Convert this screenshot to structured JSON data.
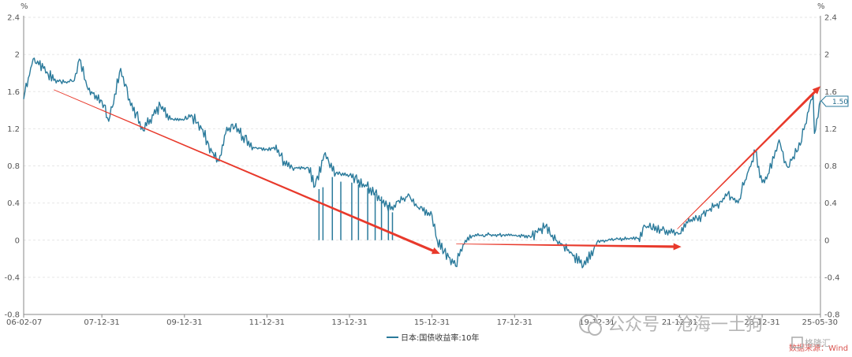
{
  "chart_data": {
    "type": "line",
    "unit_left": "%",
    "unit_right": "%",
    "y_ticks": [
      "2.4",
      "2",
      "1.6",
      "1.2",
      "0.8",
      "0.4",
      "0",
      "-0.4",
      "-0.8"
    ],
    "x_ticks": [
      "06-02-07",
      "07-12-31",
      "09-12-31",
      "11-12-31",
      "13-12-31",
      "15-12-31",
      "17-12-31",
      "19-12-31",
      "21-12-31",
      "23-12-31",
      "25-05-30"
    ],
    "ylim": [
      -0.8,
      2.4
    ],
    "xlim": [
      "2006-02-07",
      "2025-05-30"
    ],
    "grid": true,
    "legend_position": "bottom-center",
    "series": [
      {
        "name": "日本:国债收益率:10年",
        "color": "#2a7a9b",
        "last_value_label": "1.50",
        "points": [
          [
            "2006-02-07",
            1.52
          ],
          [
            "2006-05-01",
            1.95
          ],
          [
            "2006-08-01",
            1.85
          ],
          [
            "2006-11-01",
            1.72
          ],
          [
            "2007-02-01",
            1.7
          ],
          [
            "2007-05-01",
            1.72
          ],
          [
            "2007-06-15",
            1.95
          ],
          [
            "2007-09-01",
            1.62
          ],
          [
            "2007-12-31",
            1.5
          ],
          [
            "2008-03-01",
            1.28
          ],
          [
            "2008-06-15",
            1.85
          ],
          [
            "2008-09-01",
            1.52
          ],
          [
            "2008-12-31",
            1.18
          ],
          [
            "2009-03-01",
            1.3
          ],
          [
            "2009-06-01",
            1.45
          ],
          [
            "2009-09-01",
            1.3
          ],
          [
            "2009-12-31",
            1.3
          ],
          [
            "2010-03-01",
            1.35
          ],
          [
            "2010-06-01",
            1.2
          ],
          [
            "2010-09-01",
            0.95
          ],
          [
            "2010-11-01",
            0.85
          ],
          [
            "2010-12-31",
            1.15
          ],
          [
            "2011-03-01",
            1.25
          ],
          [
            "2011-06-01",
            1.12
          ],
          [
            "2011-09-01",
            1.0
          ],
          [
            "2011-12-31",
            0.98
          ],
          [
            "2012-03-01",
            1.0
          ],
          [
            "2012-06-01",
            0.85
          ],
          [
            "2012-09-01",
            0.78
          ],
          [
            "2012-12-31",
            0.78
          ],
          [
            "2013-03-01",
            0.58
          ],
          [
            "2013-05-20",
            0.92
          ],
          [
            "2013-09-01",
            0.72
          ],
          [
            "2013-12-31",
            0.7
          ],
          [
            "2014-06-01",
            0.58
          ],
          [
            "2014-12-31",
            0.33
          ],
          [
            "2015-03-01",
            0.42
          ],
          [
            "2015-06-15",
            0.48
          ],
          [
            "2015-09-01",
            0.35
          ],
          [
            "2015-12-31",
            0.27
          ],
          [
            "2016-02-15",
            0.0
          ],
          [
            "2016-07-27",
            -0.28
          ],
          [
            "2016-10-01",
            -0.05
          ],
          [
            "2016-12-31",
            0.05
          ],
          [
            "2017-06-01",
            0.06
          ],
          [
            "2017-12-31",
            0.05
          ],
          [
            "2018-06-01",
            0.04
          ],
          [
            "2018-10-01",
            0.15
          ],
          [
            "2018-12-31",
            0.0
          ],
          [
            "2019-03-01",
            -0.05
          ],
          [
            "2019-09-01",
            -0.28
          ],
          [
            "2019-12-31",
            -0.02
          ],
          [
            "2020-03-15",
            0.0
          ],
          [
            "2020-06-01",
            0.01
          ],
          [
            "2020-12-31",
            0.02
          ],
          [
            "2021-03-01",
            0.15
          ],
          [
            "2021-12-31",
            0.07
          ],
          [
            "2022-03-01",
            0.2
          ],
          [
            "2022-06-01",
            0.24
          ],
          [
            "2022-12-31",
            0.42
          ],
          [
            "2023-03-01",
            0.5
          ],
          [
            "2023-06-01",
            0.4
          ],
          [
            "2023-09-01",
            0.75
          ],
          [
            "2023-11-01",
            0.95
          ],
          [
            "2023-12-31",
            0.62
          ],
          [
            "2024-03-01",
            0.72
          ],
          [
            "2024-05-29",
            1.08
          ],
          [
            "2024-08-05",
            0.8
          ],
          [
            "2024-11-01",
            0.95
          ],
          [
            "2025-01-15",
            1.25
          ],
          [
            "2025-03-27",
            1.58
          ],
          [
            "2025-04-07",
            1.15
          ],
          [
            "2025-05-30",
            1.5
          ]
        ]
      }
    ],
    "spikes": [
      [
        "2013-04-05",
        0.55
      ],
      [
        "2013-05-10",
        0.57
      ],
      [
        "2013-08-01",
        0.68
      ],
      [
        "2013-10-15",
        0.63
      ],
      [
        "2014-01-20",
        0.62
      ],
      [
        "2014-03-20",
        0.6
      ],
      [
        "2014-06-10",
        0.56
      ],
      [
        "2014-08-15",
        0.5
      ],
      [
        "2014-10-10",
        0.47
      ],
      [
        "2014-12-10",
        0.38
      ],
      [
        "2015-01-15",
        0.3
      ]
    ],
    "annotations": [
      {
        "type": "trend-arrow",
        "from": [
          "2006-11-01",
          1.62
        ],
        "to": [
          "2016-01-20",
          -0.12
        ],
        "color": "#e8392b"
      },
      {
        "type": "trend-arrow",
        "from": [
          "2016-08-01",
          -0.04
        ],
        "to": [
          "2021-11-20",
          -0.07
        ],
        "color": "#e8392b"
      },
      {
        "type": "trend-arrow",
        "from": [
          "2021-12-10",
          0.12
        ],
        "to": [
          "2025-04-20",
          1.61
        ],
        "color": "#e8392b"
      }
    ]
  },
  "source": "数据来源：Wind",
  "watermark": "公众号 · 沧海一土狗",
  "logo": "格隆汇"
}
